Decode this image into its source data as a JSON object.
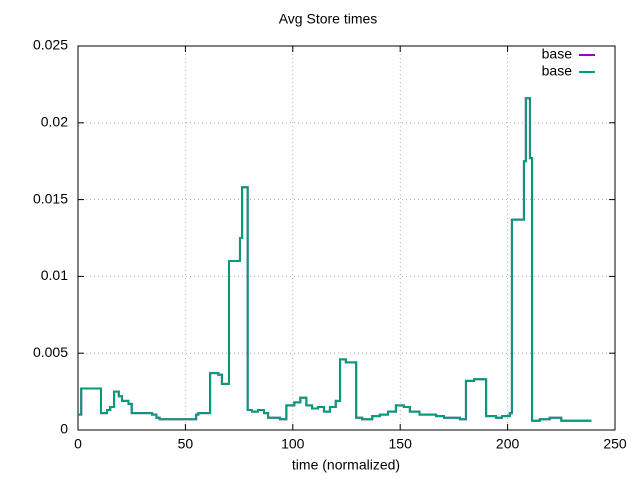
{
  "chart_data": {
    "type": "line",
    "step": true,
    "title": "Avg Store times",
    "xlabel": "time (normalized)",
    "x": [
      0,
      1.5,
      10.7,
      13.5,
      15,
      16.8,
      19,
      20.5,
      23.5,
      25,
      34.5,
      36.5,
      38,
      55,
      56,
      61.5,
      65.3,
      67,
      70.3,
      75.4,
      76.4,
      79,
      81,
      83.8,
      86.6,
      88.5,
      94,
      97,
      100.7,
      103.5,
      106.3,
      109,
      111.7,
      114.5,
      117.3,
      120,
      122,
      124.7,
      129.5,
      132.3,
      137,
      140.5,
      144.3,
      148,
      151.7,
      154.5,
      159,
      166.7,
      170.4,
      177.8,
      180.6,
      184.4,
      190,
      194.6,
      197.4,
      201,
      202,
      207.6,
      208.5,
      210.4,
      211.4,
      215,
      219.6,
      225,
      239
    ],
    "series": [
      {
        "name": "base",
        "color": "#9400d3",
        "values": [
          0.001,
          0.0027,
          0.0011,
          0.0013,
          0.0015,
          0.0025,
          0.0022,
          0.0019,
          0.0017,
          0.0011,
          0.001,
          0.0008,
          0.0007,
          0.001,
          0.0011,
          0.0037,
          0.0036,
          0.003,
          0.011,
          0.0125,
          0.0158,
          0.0013,
          0.0012,
          0.0013,
          0.0011,
          0.0008,
          0.0007,
          0.0016,
          0.0018,
          0.0021,
          0.0016,
          0.0014,
          0.0015,
          0.0012,
          0.0015,
          0.0019,
          0.0046,
          0.0044,
          0.0008,
          0.0007,
          0.0009,
          0.001,
          0.0012,
          0.0016,
          0.0015,
          0.0012,
          0.001,
          0.0009,
          0.0008,
          0.0007,
          0.0032,
          0.0033,
          0.0009,
          0.0008,
          0.0009,
          0.0011,
          0.0137,
          0.0175,
          0.0216,
          0.0177,
          0.0006,
          0.0007,
          0.0008,
          0.0006,
          0.0006
        ]
      },
      {
        "name": "base",
        "color": "#009e73",
        "values": [
          0.001,
          0.0027,
          0.0011,
          0.0013,
          0.0015,
          0.0025,
          0.0022,
          0.0019,
          0.0017,
          0.0011,
          0.001,
          0.0008,
          0.0007,
          0.001,
          0.0011,
          0.0037,
          0.0036,
          0.003,
          0.011,
          0.0125,
          0.0158,
          0.0013,
          0.0012,
          0.0013,
          0.0011,
          0.0008,
          0.0007,
          0.0016,
          0.0018,
          0.0021,
          0.0016,
          0.0014,
          0.0015,
          0.0012,
          0.0015,
          0.0019,
          0.0046,
          0.0044,
          0.0008,
          0.0007,
          0.0009,
          0.001,
          0.0012,
          0.0016,
          0.0015,
          0.0012,
          0.001,
          0.0009,
          0.0008,
          0.0007,
          0.0032,
          0.0033,
          0.0009,
          0.0008,
          0.0009,
          0.0011,
          0.0137,
          0.0175,
          0.0216,
          0.0177,
          0.0006,
          0.0007,
          0.0008,
          0.0006,
          0.0006
        ]
      }
    ],
    "xlim": [
      0,
      250
    ],
    "xticks": [
      0,
      50,
      100,
      150,
      200,
      250
    ],
    "ylim": [
      0,
      0.025
    ],
    "yticks": [
      0,
      0.005,
      0.01,
      0.015,
      0.02,
      0.025
    ],
    "grid": true,
    "legend": "top-right"
  }
}
